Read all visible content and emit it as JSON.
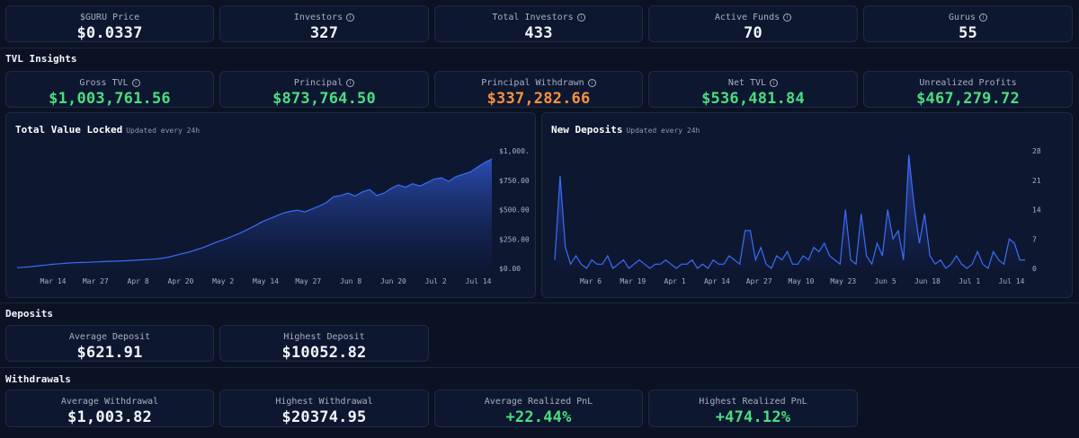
{
  "top_stats": [
    {
      "label": "$GURU Price",
      "value": "$0.0337",
      "info": false
    },
    {
      "label": "Investors",
      "value": "327",
      "info": true
    },
    {
      "label": "Total Investors",
      "value": "433",
      "info": true
    },
    {
      "label": "Active Funds",
      "value": "70",
      "info": true
    },
    {
      "label": "Gurus",
      "value": "55",
      "info": true
    }
  ],
  "tvl_section": {
    "title": "TVL Insights",
    "stats": [
      {
        "label": "Gross TVL",
        "value": "$1,003,761.56",
        "color": "#4ade80",
        "info": true
      },
      {
        "label": "Principal",
        "value": "$873,764.50",
        "color": "#4ade80",
        "info": true
      },
      {
        "label": "Principal Withdrawn",
        "value": "$337,282.66",
        "color": "#fb923c",
        "info": true
      },
      {
        "label": "Net TVL",
        "value": "$536,481.84",
        "color": "#4ade80",
        "info": true
      },
      {
        "label": "Unrealized Profits",
        "value": "$467,279.72",
        "color": "#4ade80",
        "info": false
      }
    ]
  },
  "chart_data": [
    {
      "type": "area",
      "title": "Total Value Locked",
      "subtitle": "Updated every 24h",
      "x_ticks": [
        "Mar 14",
        "Mar 27",
        "Apr 8",
        "Apr 20",
        "May 2",
        "May 14",
        "May 27",
        "Jun 8",
        "Jun 20",
        "Jul 2",
        "Jul 14"
      ],
      "y_ticks": [
        "$0.00",
        "$250.00",
        "$500.00",
        "$750.00",
        "$1,000."
      ],
      "ylim": [
        0,
        1000
      ],
      "values": [
        5,
        10,
        15,
        22,
        28,
        35,
        40,
        45,
        48,
        50,
        52,
        55,
        58,
        60,
        62,
        65,
        68,
        72,
        75,
        78,
        85,
        95,
        110,
        125,
        140,
        160,
        180,
        205,
        230,
        250,
        275,
        300,
        330,
        360,
        395,
        420,
        445,
        470,
        485,
        495,
        480,
        505,
        530,
        560,
        610,
        620,
        640,
        615,
        650,
        670,
        620,
        640,
        680,
        710,
        690,
        720,
        700,
        730,
        760,
        770,
        740,
        780,
        800,
        820,
        860,
        900,
        930
      ]
    },
    {
      "type": "area",
      "title": "New Deposits",
      "subtitle": "Updated every 24h",
      "x_ticks": [
        "Mar 6",
        "Mar 19",
        "Apr 1",
        "Apr 14",
        "Apr 27",
        "May 10",
        "May 23",
        "Jun 5",
        "Jun 18",
        "Jul 1",
        "Jul 14"
      ],
      "y_ticks": [
        "0",
        "7",
        "14",
        "21",
        "28"
      ],
      "ylim": [
        0,
        28
      ],
      "values": [
        2,
        22,
        5,
        1,
        3,
        1,
        0,
        2,
        1,
        1,
        3,
        0,
        1,
        2,
        0,
        1,
        2,
        1,
        0,
        1,
        1,
        2,
        1,
        0,
        1,
        1,
        2,
        0,
        1,
        0,
        2,
        1,
        1,
        3,
        2,
        1,
        9,
        9,
        2,
        5,
        1,
        0,
        3,
        2,
        4,
        1,
        1,
        3,
        2,
        5,
        4,
        6,
        3,
        2,
        1,
        14,
        2,
        1,
        13,
        3,
        1,
        6,
        3,
        14,
        7,
        9,
        2,
        27,
        15,
        6,
        13,
        3,
        1,
        2,
        0,
        1,
        3,
        1,
        0,
        1,
        4,
        1,
        0,
        4,
        2,
        1,
        7,
        6,
        2,
        2
      ]
    }
  ],
  "deposits_section": {
    "title": "Deposits",
    "stats": [
      {
        "label": "Average Deposit",
        "value": "$621.91"
      },
      {
        "label": "Highest Deposit",
        "value": "$10052.82"
      }
    ]
  },
  "withdrawals_section": {
    "title": "Withdrawals",
    "stats": [
      {
        "label": "Average Withdrawal",
        "value": "$1,003.82",
        "color": "#f2f5fb"
      },
      {
        "label": "Highest Withdrawal",
        "value": "$20374.95",
        "color": "#f2f5fb"
      },
      {
        "label": "Average Realized PnL",
        "value": "+22.44%",
        "color": "#4ade80"
      },
      {
        "label": "Highest Realized PnL",
        "value": "+474.12%",
        "color": "#4ade80"
      }
    ]
  }
}
